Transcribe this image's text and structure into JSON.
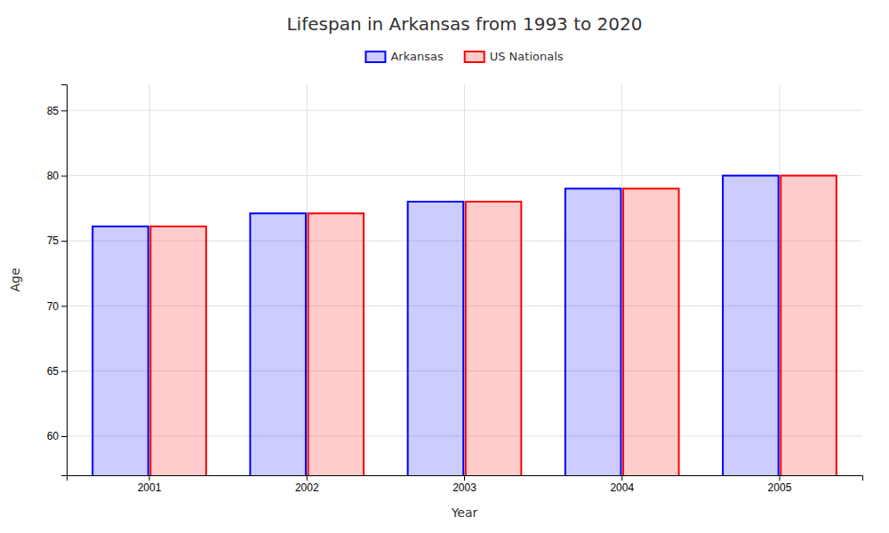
{
  "chart_data": {
    "type": "bar",
    "title": "Lifespan in Arkansas from 1993 to 2020",
    "x_label": "Year",
    "y_label": "Age",
    "categories": [
      "2001",
      "2002",
      "2003",
      "2004",
      "2005"
    ],
    "series": [
      {
        "name": "Arkansas",
        "color": "#0000ff",
        "values": [
          76.1,
          77.1,
          78.0,
          79.0,
          80.0
        ]
      },
      {
        "name": "US Nationals",
        "color": "#ff0000",
        "values": [
          76.1,
          77.1,
          78.0,
          79.0,
          80.0
        ]
      }
    ],
    "ylim": [
      57,
      87
    ],
    "yticks": [
      60,
      65,
      70,
      75,
      80,
      85
    ],
    "grid": true,
    "legend": "top"
  }
}
